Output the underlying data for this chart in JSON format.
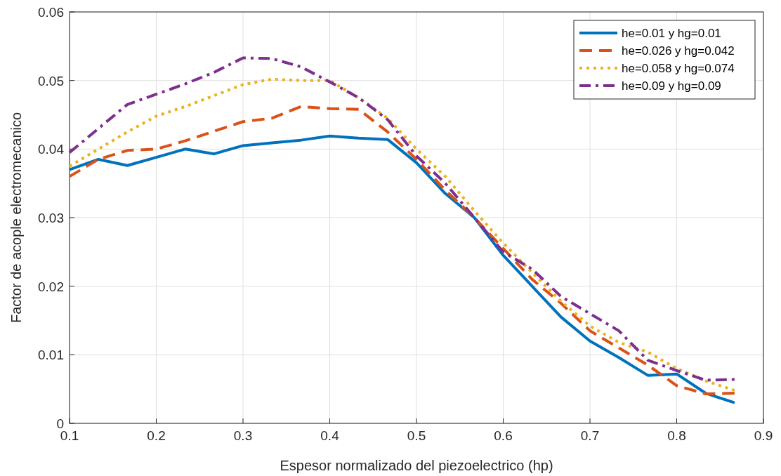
{
  "chart_data": {
    "type": "line",
    "xlabel": "Espesor normalizado del piezoelectrico (hp)",
    "ylabel": "Factor de acople electromecanico",
    "x": [
      0.1,
      0.1333,
      0.1667,
      0.2,
      0.2333,
      0.2667,
      0.3,
      0.3333,
      0.3667,
      0.4,
      0.4333,
      0.4667,
      0.5,
      0.5333,
      0.5667,
      0.6,
      0.6333,
      0.6667,
      0.7,
      0.7333,
      0.7667,
      0.8,
      0.8333,
      0.8667
    ],
    "xlim": [
      0.1,
      0.9
    ],
    "xticks": [
      0.1,
      0.2,
      0.3,
      0.4,
      0.5,
      0.6,
      0.7,
      0.8,
      0.9
    ],
    "ylim": [
      0,
      0.06
    ],
    "yticks": [
      0,
      0.01,
      0.02,
      0.03,
      0.04,
      0.05,
      0.06
    ],
    "grid": true,
    "legend": "top right",
    "series": [
      {
        "name": "he=0.01 y hg=0.01",
        "color": "#0072bd",
        "line_style": "solid",
        "values": [
          0.037,
          0.0385,
          0.0376,
          0.0388,
          0.04,
          0.0393,
          0.0405,
          0.0409,
          0.0413,
          0.0419,
          0.0416,
          0.0414,
          0.038,
          0.0335,
          0.03,
          0.0245,
          0.02,
          0.0155,
          0.012,
          0.0096,
          0.007,
          0.0072,
          0.0044,
          0.003
        ]
      },
      {
        "name": "he=0.026 y hg=0.042",
        "color": "#d95319",
        "line_style": "dashed",
        "values": [
          0.036,
          0.0385,
          0.0398,
          0.04,
          0.0412,
          0.0426,
          0.044,
          0.0445,
          0.0462,
          0.0459,
          0.0458,
          0.0425,
          0.0385,
          0.034,
          0.03,
          0.0255,
          0.021,
          0.0175,
          0.0135,
          0.011,
          0.0085,
          0.0055,
          0.0043,
          0.0044
        ]
      },
      {
        "name": "he=0.058 y hg=0.074",
        "color": "#edb120",
        "line_style": "dotted",
        "values": [
          0.0375,
          0.04,
          0.0425,
          0.0448,
          0.0462,
          0.0478,
          0.0494,
          0.0502,
          0.05,
          0.05,
          0.0475,
          0.0445,
          0.04,
          0.036,
          0.031,
          0.0263,
          0.022,
          0.0178,
          0.0142,
          0.0118,
          0.0104,
          0.008,
          0.0062,
          0.0048
        ]
      },
      {
        "name": "he=0.09 y hg=0.09",
        "color": "#7e2f8e",
        "line_style": "dashdot",
        "values": [
          0.0395,
          0.043,
          0.0465,
          0.048,
          0.0495,
          0.0512,
          0.0533,
          0.0532,
          0.052,
          0.0498,
          0.0475,
          0.0443,
          0.039,
          0.035,
          0.03,
          0.025,
          0.0225,
          0.0185,
          0.016,
          0.0135,
          0.0092,
          0.0077,
          0.0063,
          0.0064
        ]
      }
    ]
  }
}
